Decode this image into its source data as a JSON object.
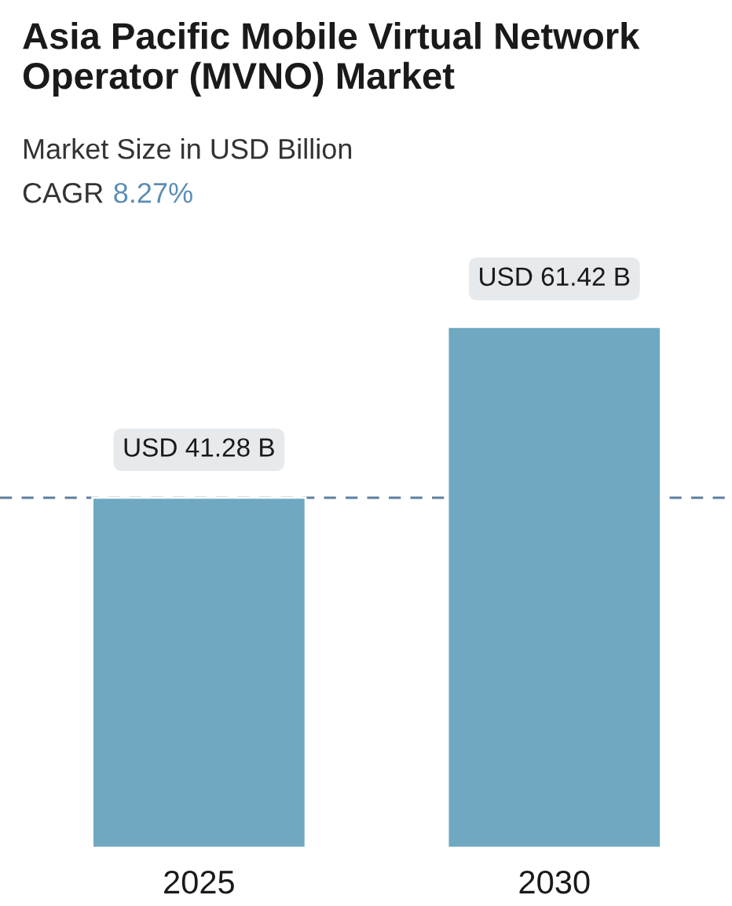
{
  "chart_data": {
    "type": "bar",
    "title": "Asia Pacific Mobile Virtual Network Operator (MVNO) Market",
    "subtitle": "Market Size in USD Billion",
    "annotations": [
      "CAGR",
      "8.27%"
    ],
    "categories": [
      "2025",
      "2030"
    ],
    "series": [
      {
        "color": "#6fa8c0",
        "values": [
          41.28,
          61.42
        ],
        "value_labels": [
          "USD 41.28 B",
          "USD 61.42 B"
        ]
      }
    ],
    "ref_lines": [
      {
        "axis": "y",
        "value": 41.28,
        "color": "#5f7f9c",
        "line_style": "dashed"
      }
    ],
    "grid": false,
    "legend": false
  }
}
